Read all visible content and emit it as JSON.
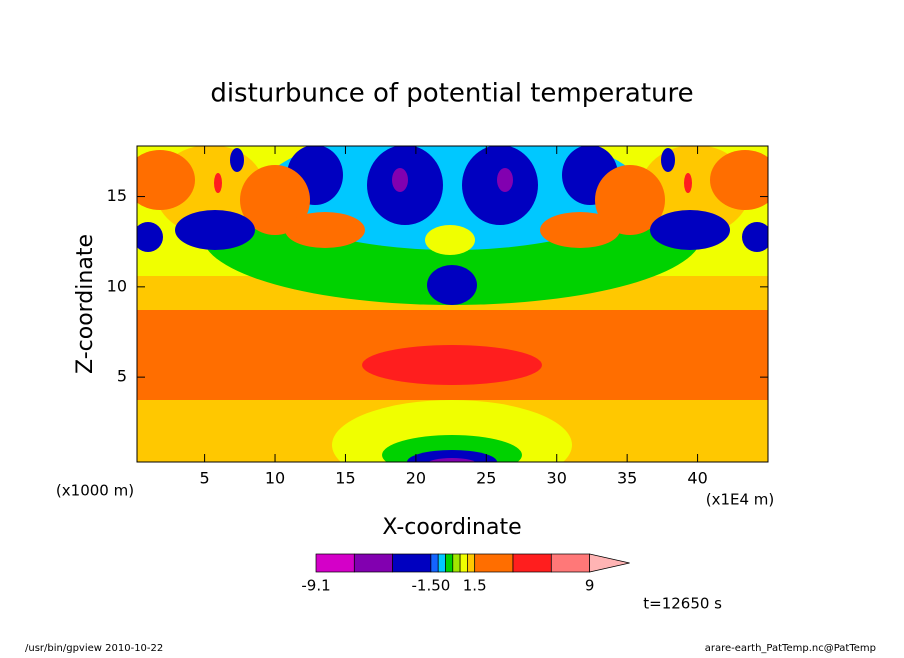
{
  "chart_data": {
    "type": "contour",
    "title": "disturbunce of potential temperature",
    "xlabel": "X-coordinate",
    "ylabel": "Z-coordinate",
    "xunit": "(x1E4 m)",
    "yunit": "(x1000 m)",
    "xlim": [
      0.2,
      45
    ],
    "ylim": [
      0.3,
      17.8
    ],
    "xticks": [
      5,
      10,
      15,
      20,
      25,
      30,
      35,
      40
    ],
    "yticks": [
      5,
      10,
      15
    ],
    "colorbar": {
      "levels": [
        -9.1,
        -6,
        -3,
        -1.5,
        -1,
        -0.5,
        0,
        0.5,
        1,
        1.5,
        3,
        6,
        9
      ],
      "colors": [
        "#d400c8",
        "#8200b0",
        "#0000c0",
        "#1464ff",
        "#00c8ff",
        "#00d200",
        "#a0e600",
        "#f0ff00",
        "#ffc800",
        "#ff6e00",
        "#ff1e1e",
        "#ff7878"
      ],
      "over_color": "#ffb4b4",
      "ticks": [
        -9.1,
        {
          "value": -1.5,
          "label": "-1.50"
        },
        1.5,
        9
      ]
    },
    "annotation": "t=12650 s"
  },
  "footer": {
    "left": "/usr/bin/gpview  2010-10-22",
    "right": "arare-earth_PatTemp.nc@PatTemp"
  }
}
